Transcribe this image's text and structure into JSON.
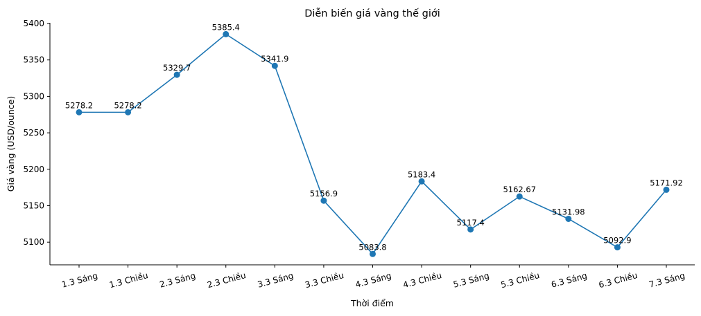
{
  "chart_data": {
    "type": "line",
    "title": "Diễn biến giá vàng thế giới",
    "xlabel": "Thời điểm",
    "ylabel": "Giá vàng (USD/ounce)",
    "categories": [
      "1.3 Sáng",
      "1.3 Chiều",
      "2.3 Sáng",
      "2.3 Chiều",
      "3.3 Sáng",
      "3.3 Chiều",
      "4.3 Sáng",
      "4.3 Chiều",
      "5.3 Sáng",
      "5.3 Chiều",
      "6.3 Sáng",
      "6.3 Chiều",
      "7.3 Sáng"
    ],
    "series": [
      {
        "name": "Giá vàng",
        "values": [
          5278.2,
          5278.2,
          5329.7,
          5385.4,
          5341.9,
          5156.9,
          5083.8,
          5183.4,
          5117.4,
          5162.67,
          5131.98,
          5092.9,
          5171.92
        ],
        "labels": [
          "5278.2",
          "5278.2",
          "5329.7",
          "5385.4",
          "5341.9",
          "5156.9",
          "5083.8",
          "5183.4",
          "5117.4",
          "5162.67",
          "5131.98",
          "5092.9",
          "5171.92"
        ],
        "color": "#1f77b4",
        "marker": "circle"
      }
    ],
    "yticks": [
      5100,
      5150,
      5200,
      5250,
      5300,
      5350,
      5400
    ],
    "ylim": [
      5069,
      5400
    ],
    "xtick_rotation": -15,
    "grid": false,
    "legend": null,
    "spines": {
      "top": false,
      "right": false,
      "left": true,
      "bottom": true
    }
  }
}
